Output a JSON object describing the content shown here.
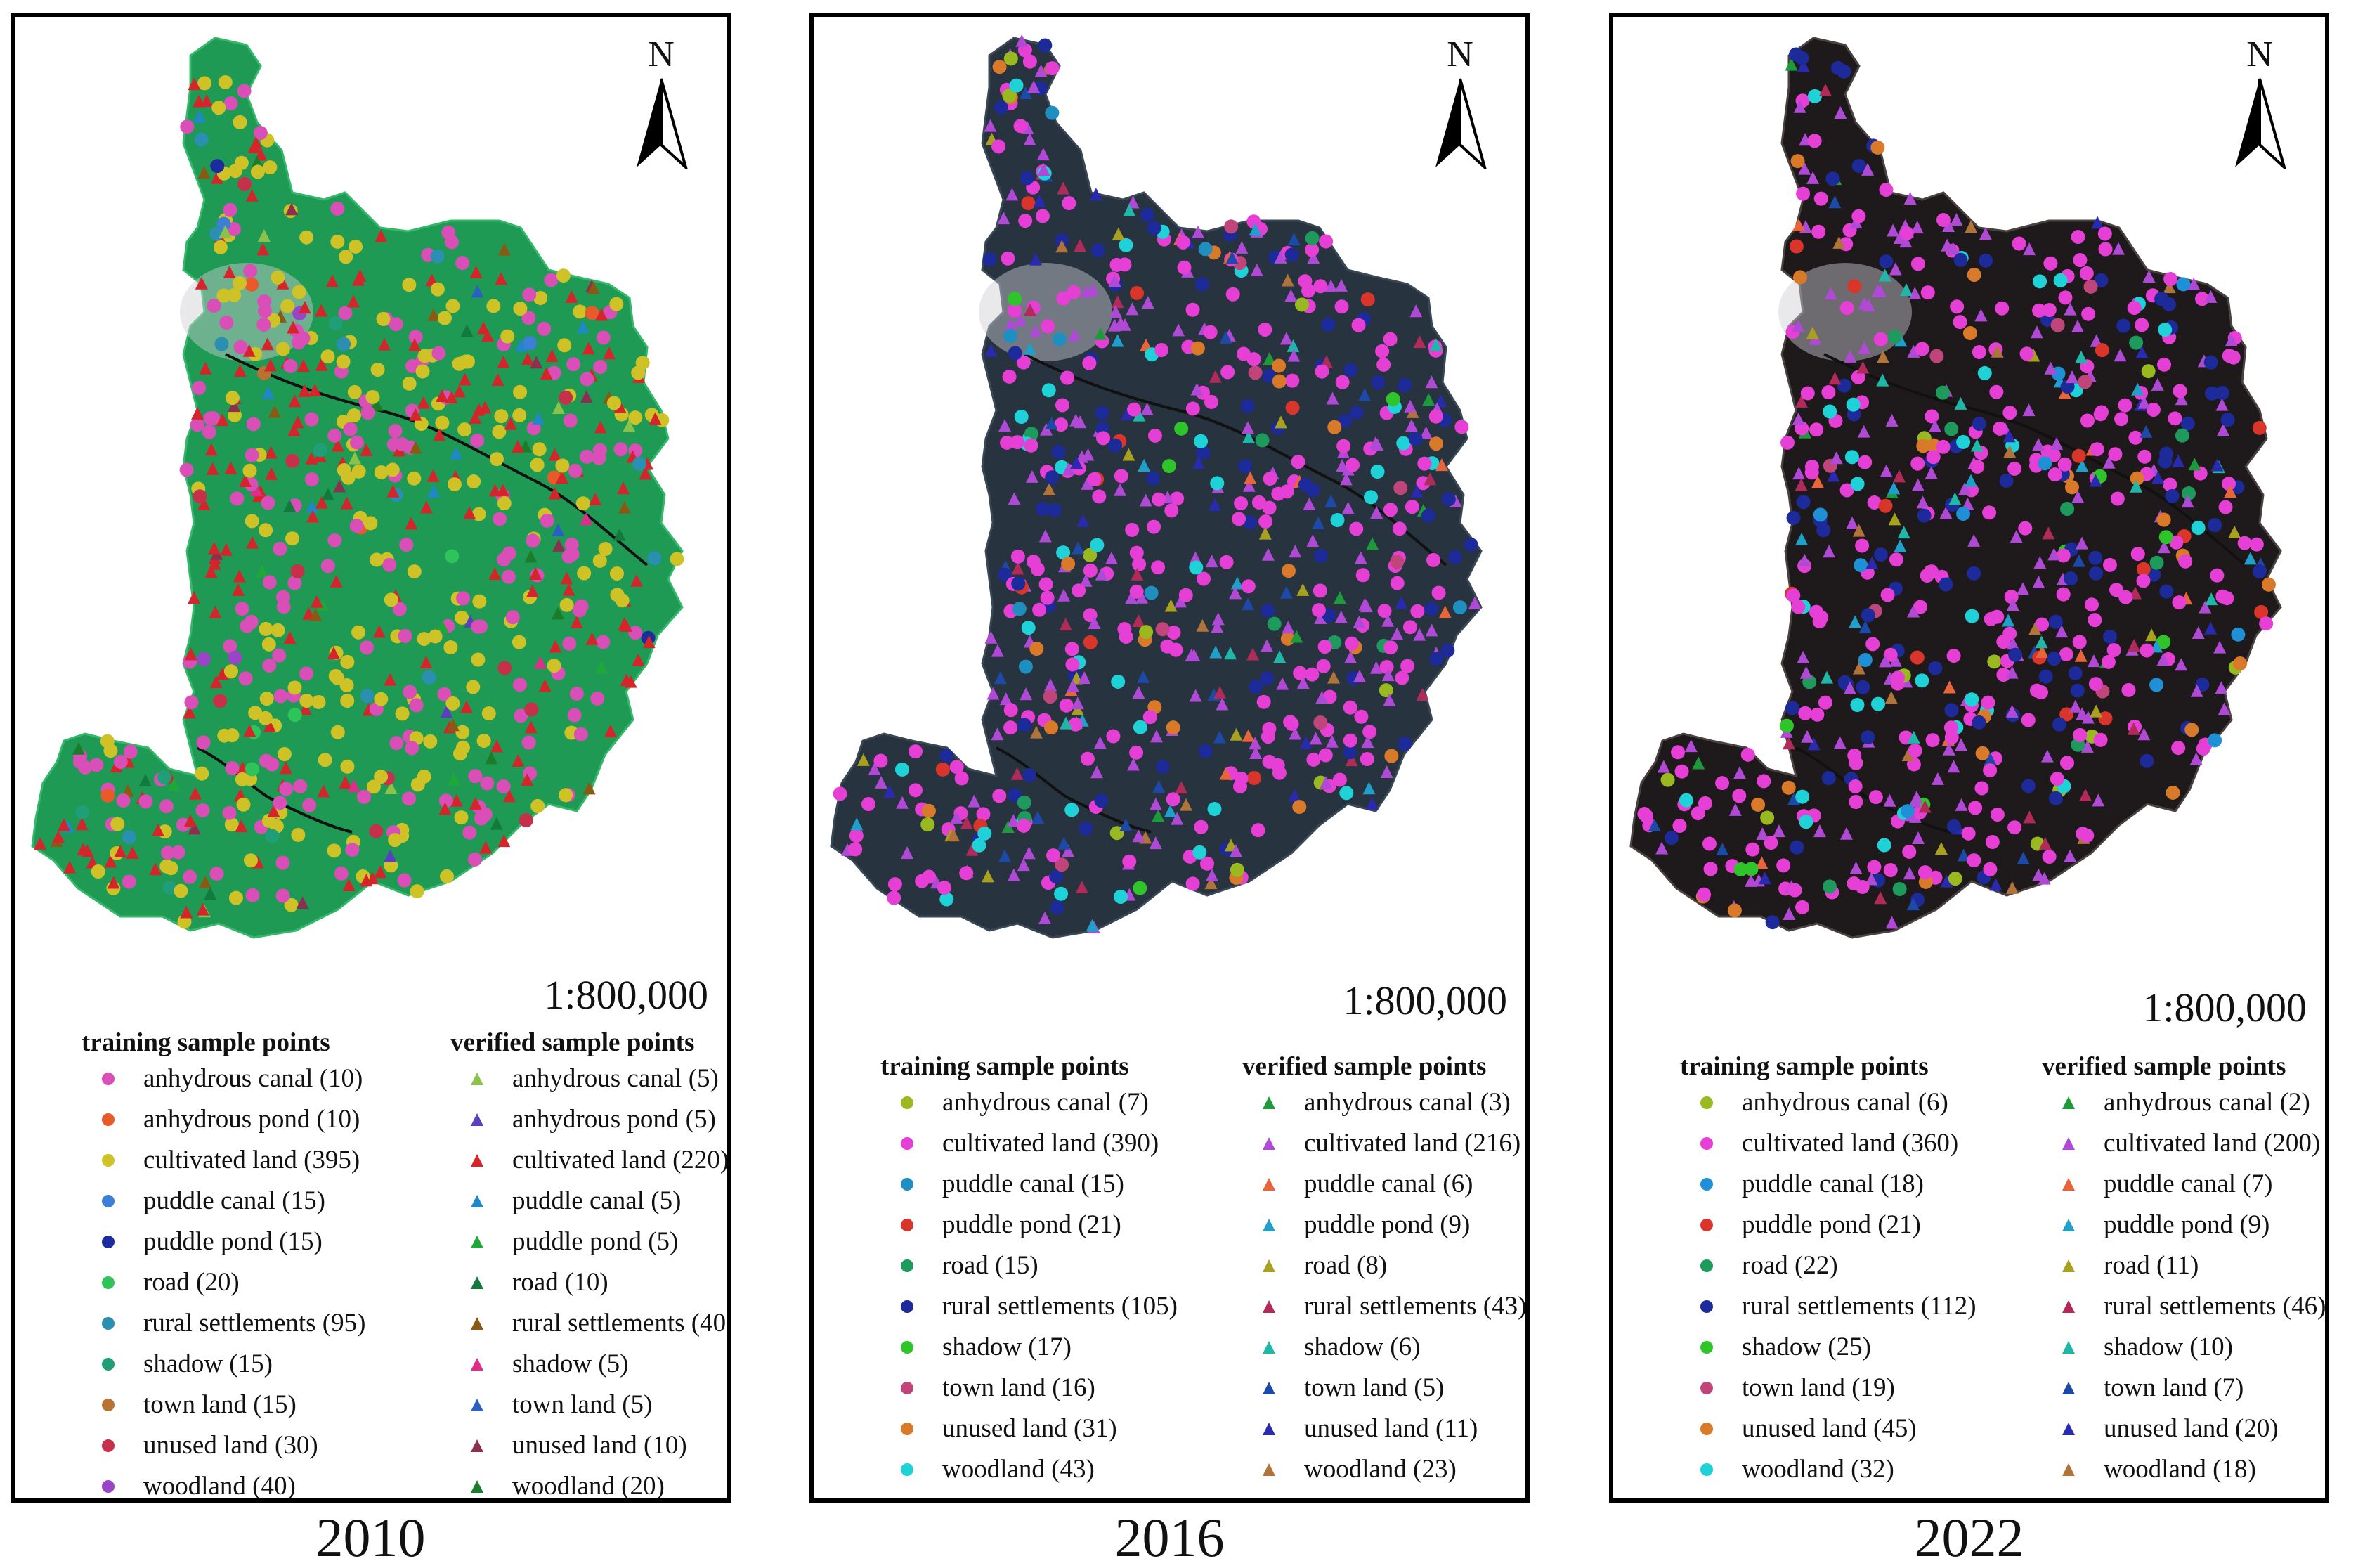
{
  "panels": [
    {
      "year": "2010",
      "scale": "1:800,000",
      "north": "N",
      "base_color": "#1e9a55",
      "tint": "#34b86a",
      "training_title": "training sample points",
      "verified_title": "verified sample points",
      "training": [
        {
          "label": "anhydrous canal (10)",
          "color": "#d94fb7"
        },
        {
          "label": "anhydrous pond (10)",
          "color": "#e85a2a"
        },
        {
          "label": "cultivated land (395)",
          "color": "#cfc227"
        },
        {
          "label": "puddle canal (15)",
          "color": "#3d7fd6"
        },
        {
          "label": "puddle pond (15)",
          "color": "#1d2c9c"
        },
        {
          "label": "road (20)",
          "color": "#2ec45a"
        },
        {
          "label": "rural settlements (95)",
          "color": "#2a8fb0"
        },
        {
          "label": "shadow (15)",
          "color": "#1f9e78"
        },
        {
          "label": "town land (15)",
          "color": "#b87333"
        },
        {
          "label": "unused land (30)",
          "color": "#c6304a"
        },
        {
          "label": "woodland (40)",
          "color": "#9a44c8"
        }
      ],
      "verified": [
        {
          "label": "anhydrous canal (5)",
          "color": "#8bc34a"
        },
        {
          "label": "anhydrous pond (5)",
          "color": "#5a3fbf"
        },
        {
          "label": "cultivated land (220)",
          "color": "#d6242b"
        },
        {
          "label": "puddle canal (5)",
          "color": "#1e88c8"
        },
        {
          "label": "puddle pond (5)",
          "color": "#1fa83a"
        },
        {
          "label": "road (10)",
          "color": "#127a3c"
        },
        {
          "label": "rural settlements (40)",
          "color": "#8a5a12"
        },
        {
          "label": "shadow (5)",
          "color": "#e02c8a"
        },
        {
          "label": "town land (5)",
          "color": "#2c5fc4"
        },
        {
          "label": "unused land (10)",
          "color": "#8c3050"
        },
        {
          "label": "woodland (20)",
          "color": "#1b7d2a"
        }
      ]
    },
    {
      "year": "2016",
      "scale": "1:800,000",
      "north": "N",
      "base_color": "#27333f",
      "tint": "#3a4856",
      "training_title": "training sample points",
      "verified_title": "verified sample points",
      "training": [
        {
          "label": "anhydrous canal (7)",
          "color": "#9ab81f"
        },
        {
          "label": "cultivated land (390)",
          "color": "#e63fd6"
        },
        {
          "label": "puddle canal (15)",
          "color": "#1f8fc0"
        },
        {
          "label": "puddle pond (21)",
          "color": "#d9352a"
        },
        {
          "label": "road (15)",
          "color": "#1d9a5c"
        },
        {
          "label": "rural settlements (105)",
          "color": "#1d2a9a"
        },
        {
          "label": "shadow (17)",
          "color": "#2fc42a"
        },
        {
          "label": "town land (16)",
          "color": "#c0457a"
        },
        {
          "label": "unused land (31)",
          "color": "#d9792a"
        },
        {
          "label": "woodland (43)",
          "color": "#1fd2d8"
        }
      ],
      "verified": [
        {
          "label": "anhydrous canal (3)",
          "color": "#1d9a3a"
        },
        {
          "label": "cultivated land (216)",
          "color": "#b04ad6"
        },
        {
          "label": "puddle canal (6)",
          "color": "#e8643a"
        },
        {
          "label": "puddle pond (9)",
          "color": "#1f9fc9"
        },
        {
          "label": "road (8)",
          "color": "#a8a01f"
        },
        {
          "label": "rural settlements (43)",
          "color": "#b02a5a"
        },
        {
          "label": "shadow (6)",
          "color": "#1fb8a8"
        },
        {
          "label": "town land (5)",
          "color": "#1d4aa8"
        },
        {
          "label": "unused land (11)",
          "color": "#2a2ab0"
        },
        {
          "label": "woodland (23)",
          "color": "#b0733a"
        }
      ]
    },
    {
      "year": "2022",
      "scale": "1:800,000",
      "north": "N",
      "base_color": "#1e1a1c",
      "tint": "#4a4240",
      "training_title": "training sample points",
      "verified_title": "verified sample points",
      "training": [
        {
          "label": "anhydrous canal (6)",
          "color": "#9ab81f"
        },
        {
          "label": "cultivated land (360)",
          "color": "#e63fd6"
        },
        {
          "label": "puddle canal (18)",
          "color": "#1f8fd6"
        },
        {
          "label": "puddle pond (21)",
          "color": "#d9352a"
        },
        {
          "label": "road (22)",
          "color": "#1d9a5c"
        },
        {
          "label": "rural settlements (112)",
          "color": "#1d2a9a"
        },
        {
          "label": "shadow (25)",
          "color": "#2fc42a"
        },
        {
          "label": "town land (19)",
          "color": "#c0457a"
        },
        {
          "label": "unused land (45)",
          "color": "#d9792a"
        },
        {
          "label": "woodland (32)",
          "color": "#1fd2d8"
        }
      ],
      "verified": [
        {
          "label": "anhydrous canal (2)",
          "color": "#1d9a3a"
        },
        {
          "label": "cultivated land (200)",
          "color": "#b04ad6"
        },
        {
          "label": "puddle canal (7)",
          "color": "#e8643a"
        },
        {
          "label": "puddle pond (9)",
          "color": "#1f9fc9"
        },
        {
          "label": "road (11)",
          "color": "#a8a01f"
        },
        {
          "label": "rural settlements (46)",
          "color": "#b02a5a"
        },
        {
          "label": "shadow (10)",
          "color": "#1fb8a8"
        },
        {
          "label": "town land (7)",
          "color": "#1d4aa8"
        },
        {
          "label": "unused land (20)",
          "color": "#2a2ab0"
        },
        {
          "label": "woodland (18)",
          "color": "#b0733a"
        }
      ]
    }
  ]
}
